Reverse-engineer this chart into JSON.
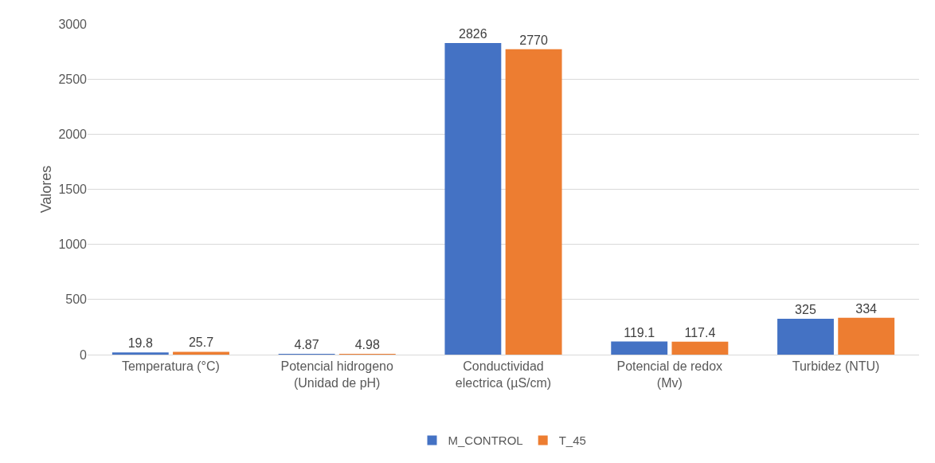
{
  "chart_data": {
    "type": "bar",
    "ylabel": "Valores",
    "categories": [
      "Temperatura (°C)",
      "Potencial hidrogeno\n(Unidad de pH)",
      "Conductividad\nelectrica (µS/cm)",
      "Potencial de redox\n(Mv)",
      "Turbidez (NTU)"
    ],
    "series": [
      {
        "name": "M_CONTROL",
        "color": "#4472c4",
        "values": [
          19.8,
          4.87,
          2826,
          119.1,
          325
        ]
      },
      {
        "name": "T_45",
        "color": "#ed7d31",
        "values": [
          25.7,
          4.98,
          2770,
          117.4,
          334
        ]
      }
    ],
    "ylim": [
      0,
      3000
    ],
    "yticks": [
      0,
      500,
      1000,
      1500,
      2000,
      2500,
      3000
    ],
    "grid": "y",
    "legend": "bottom",
    "data_labels": true
  }
}
